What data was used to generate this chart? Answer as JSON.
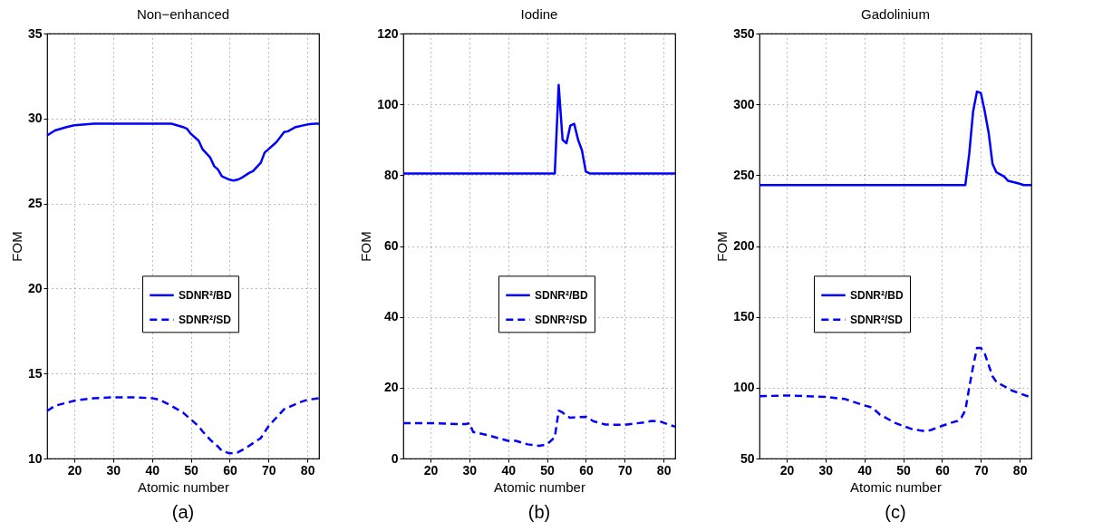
{
  "chart_data": [
    {
      "type": "line",
      "title": "Non−enhanced",
      "xlabel": "Atomic number",
      "ylabel": "FOM",
      "xlim": [
        13,
        83
      ],
      "xticks": [
        20,
        30,
        40,
        50,
        60,
        70,
        80
      ],
      "ylim": [
        10,
        35
      ],
      "yticks": [
        10,
        15,
        20,
        25,
        30,
        35
      ],
      "grid": true,
      "legend": "center",
      "annotations": [
        "(a)"
      ],
      "series": [
        {
          "name": "SDNR²/BD",
          "color": "#0000ff",
          "line_style": "solid",
          "x": [
            13,
            15,
            18,
            20,
            25,
            30,
            40,
            45,
            48,
            49,
            50,
            52,
            53,
            55,
            56,
            57,
            58,
            60,
            61,
            62,
            63,
            65,
            66,
            68,
            69,
            70,
            72,
            73,
            74,
            75,
            77,
            80,
            82,
            83
          ],
          "values": [
            29.0,
            29.3,
            29.5,
            29.6,
            29.7,
            29.7,
            29.7,
            29.7,
            29.5,
            29.4,
            29.1,
            28.7,
            28.2,
            27.7,
            27.2,
            27.0,
            26.6,
            26.4,
            26.35,
            26.4,
            26.5,
            26.8,
            26.9,
            27.4,
            28.0,
            28.2,
            28.6,
            28.9,
            29.2,
            29.25,
            29.5,
            29.65,
            29.7,
            29.7
          ]
        },
        {
          "name": "SDNR²/SD",
          "color": "#0000ff",
          "line_style": "dashed",
          "x": [
            13,
            15,
            20,
            25,
            30,
            35,
            40,
            42,
            45,
            48,
            50,
            52,
            53,
            55,
            57,
            58,
            60,
            62,
            64,
            66,
            68,
            70,
            72,
            74,
            76,
            78,
            80,
            83
          ],
          "values": [
            12.8,
            13.1,
            13.4,
            13.55,
            13.6,
            13.6,
            13.55,
            13.45,
            13.1,
            12.7,
            12.3,
            11.9,
            11.6,
            11.1,
            10.7,
            10.45,
            10.3,
            10.35,
            10.6,
            10.9,
            11.2,
            11.9,
            12.4,
            12.9,
            13.1,
            13.3,
            13.45,
            13.55
          ]
        }
      ]
    },
    {
      "type": "line",
      "title": "Iodine",
      "xlabel": "Atomic number",
      "ylabel": "FOM",
      "xlim": [
        13,
        83
      ],
      "xticks": [
        20,
        30,
        40,
        50,
        60,
        70,
        80
      ],
      "ylim": [
        0,
        120
      ],
      "yticks": [
        0,
        20,
        40,
        60,
        80,
        100,
        120
      ],
      "grid": true,
      "legend": "center",
      "annotations": [
        "(b)"
      ],
      "series": [
        {
          "name": "SDNR²/BD",
          "color": "#0000ff",
          "line_style": "solid",
          "x": [
            13,
            52,
            53,
            54,
            55,
            56,
            57,
            58,
            59,
            60,
            61,
            83
          ],
          "values": [
            80.5,
            80.5,
            105.5,
            90,
            89,
            94,
            94.5,
            90,
            87,
            81,
            80.5,
            80.5
          ]
        },
        {
          "name": "SDNR²/SD",
          "color": "#0000ff",
          "line_style": "dashed",
          "x": [
            13,
            20,
            25,
            29,
            30,
            31,
            35,
            40,
            42,
            45,
            48,
            50,
            52,
            53,
            54,
            55,
            56,
            58,
            60,
            62,
            65,
            68,
            70,
            72,
            75,
            77,
            79,
            81,
            83
          ],
          "values": [
            10,
            10,
            9.8,
            9.7,
            10,
            7.5,
            6.5,
            5,
            5,
            4,
            3.6,
            4,
            6,
            13.5,
            13,
            12,
            11.5,
            11.7,
            11.8,
            10.5,
            9.6,
            9.5,
            9.5,
            9.8,
            10.2,
            10.6,
            10.5,
            9.7,
            9
          ]
        }
      ]
    },
    {
      "type": "line",
      "title": "Gadolinium",
      "xlabel": "Atomic number",
      "ylabel": "FOM",
      "xlim": [
        13,
        83
      ],
      "xticks": [
        20,
        30,
        40,
        50,
        60,
        70,
        80
      ],
      "ylim": [
        50,
        350
      ],
      "yticks": [
        50,
        100,
        150,
        200,
        250,
        300,
        350
      ],
      "grid": true,
      "legend": "left",
      "annotations": [
        "(c)"
      ],
      "series": [
        {
          "name": "SDNR²/BD",
          "color": "#0000ff",
          "line_style": "solid",
          "x": [
            13,
            66,
            67,
            68,
            69,
            70,
            71,
            72,
            73,
            74,
            76,
            77,
            80,
            81,
            83
          ],
          "values": [
            243,
            243,
            265,
            295,
            309,
            308,
            295,
            280,
            258,
            252,
            249,
            246,
            244,
            243,
            243
          ]
        },
        {
          "name": "SDNR²/SD",
          "color": "#0000ff",
          "line_style": "dashed",
          "x": [
            13,
            20,
            30,
            35,
            40,
            42,
            44,
            48,
            50,
            52,
            55,
            57,
            60,
            62,
            64,
            65,
            66,
            67,
            68,
            69,
            70,
            71,
            72,
            73,
            74,
            76,
            78,
            80,
            83
          ],
          "values": [
            94,
            94.5,
            93.5,
            92,
            87.5,
            86,
            81,
            75,
            73,
            71,
            69.5,
            70,
            73,
            75,
            76.5,
            79,
            84,
            100,
            115,
            128,
            128,
            124,
            116,
            108,
            104,
            101,
            98,
            96,
            93
          ]
        }
      ]
    }
  ]
}
